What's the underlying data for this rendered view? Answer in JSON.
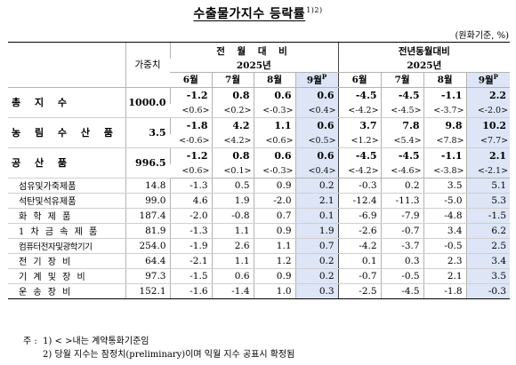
{
  "title": "수출물가지수 등락률",
  "title_sup": "1)2)",
  "unit": "(원화기준, %)",
  "header": {
    "weight": "가중치",
    "mom": "전 월 대 비",
    "yoy": "전년동월대비",
    "year": "2025년",
    "months": [
      "6월",
      "7월",
      "8월",
      "9월"
    ],
    "prelim": "P"
  },
  "rows": [
    {
      "label": "총 지 수",
      "weight": "1000.0",
      "mom": [
        "-1.2",
        "0.8",
        "0.6",
        "0.6"
      ],
      "mom_prev": [
        "<0.6>",
        "<0.2>",
        "<-0.3>",
        "<0.4>"
      ],
      "yoy": [
        "-4.5",
        "-4.5",
        "-1.1",
        "2.2"
      ],
      "yoy_prev": [
        "<-4.2>",
        "<-4.5>",
        "<-3.7>",
        "<-2.0>"
      ]
    },
    {
      "label": "농 림 수 산 품",
      "weight": "3.5",
      "mom": [
        "-1.8",
        "4.2",
        "1.1",
        "0.6"
      ],
      "mom_prev": [
        "<-0.6>",
        "<4.2>",
        "<0.6>",
        "<0.5>"
      ],
      "yoy": [
        "3.7",
        "7.8",
        "9.8",
        "10.2"
      ],
      "yoy_prev": [
        "<1.2>",
        "<5.4>",
        "<7.8>",
        "<7.7>"
      ]
    },
    {
      "label": "공 산 품",
      "weight": "996.5",
      "mom": [
        "-1.2",
        "0.8",
        "0.6",
        "0.6"
      ],
      "mom_prev": [
        "<0.6>",
        "<0.1>",
        "<-0.3>",
        "<0.4>"
      ],
      "yoy": [
        "-4.5",
        "-4.5",
        "-1.1",
        "2.1"
      ],
      "yoy_prev": [
        "<-4.2>",
        "<-4.6>",
        "<-3.8>",
        "<-2.1>"
      ]
    }
  ],
  "subrows": [
    {
      "label": "섬유및가죽제품",
      "weight": "14.8",
      "mom": [
        "-1.3",
        "0.5",
        "0.9",
        "0.2"
      ],
      "yoy": [
        "-0.3",
        "0.2",
        "3.5",
        "5.1"
      ]
    },
    {
      "label": "석탄및석유제품",
      "weight": "99.0",
      "mom": [
        "4.6",
        "1.9",
        "-2.0",
        "2.1"
      ],
      "yoy": [
        "-12.4",
        "-11.3",
        "-5.0",
        "5.3"
      ]
    },
    {
      "label": "화 학 제 품",
      "weight": "187.4",
      "mom": [
        "-2.0",
        "-0.8",
        "0.7",
        "0.1"
      ],
      "yoy": [
        "-6.9",
        "-7.9",
        "-4.8",
        "-1.5"
      ]
    },
    {
      "label": "1 차 금 속 제 품",
      "weight": "81.9",
      "mom": [
        "-1.3",
        "1.1",
        "0.9",
        "1.9"
      ],
      "yoy": [
        "-2.6",
        "-0.7",
        "3.4",
        "6.2"
      ]
    },
    {
      "label": "컴퓨터전자및광학기기",
      "weight": "254.0",
      "mom": [
        "-1.9",
        "2.6",
        "1.1",
        "0.7"
      ],
      "yoy": [
        "-4.2",
        "-3.7",
        "-0.5",
        "2.5"
      ]
    },
    {
      "label": "전 기 장 비",
      "weight": "64.4",
      "mom": [
        "-2.1",
        "1.1",
        "1.2",
        "0.2"
      ],
      "yoy": [
        "0.1",
        "0.3",
        "2.3",
        "3.4"
      ]
    },
    {
      "label": "기 계 및 장 비",
      "weight": "97.3",
      "mom": [
        "-1.5",
        "0.6",
        "0.9",
        "0.2"
      ],
      "yoy": [
        "-0.7",
        "-0.5",
        "2.1",
        "3.5"
      ]
    },
    {
      "label": "운 송 장 비",
      "weight": "152.1",
      "mom": [
        "-1.6",
        "-1.4",
        "1.0",
        "0.3"
      ],
      "yoy": [
        "-2.5",
        "-4.5",
        "-1.8",
        "-0.3"
      ]
    }
  ],
  "notes": {
    "prefix": "주 :",
    "n1": "1) < >내는 계약통화기준임",
    "n2": "2) 당월 지수는 잠정치(preliminary)이며 익월 지수 공표시 확정됨"
  },
  "colors": {
    "highlight": "#dde5f6"
  }
}
